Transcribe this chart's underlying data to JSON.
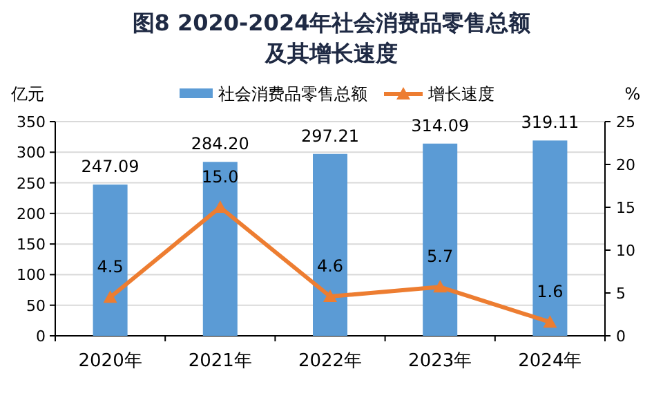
{
  "chart_data": {
    "type": "bar",
    "title": "图8  2020-2024年社会消费品零售总额及其增长速度",
    "ylabel": "亿元",
    "y2label": "%",
    "categories": [
      "2020年",
      "2021年",
      "2022年",
      "2023年",
      "2024年"
    ],
    "series": [
      {
        "name": "社会消费品零售总额",
        "color": "#5b9bd5",
        "values": [
          247.09,
          284.2,
          297.21,
          314.09,
          319.11
        ],
        "value_labels": [
          "247.09",
          "284.20",
          "297.21",
          "314.09",
          "319.11"
        ]
      },
      {
        "name": "增长速度",
        "type": "line",
        "axis": "y2",
        "color": "#ed7d31",
        "marker": "triangle",
        "values": [
          4.5,
          15.0,
          4.6,
          5.7,
          1.6
        ],
        "value_labels": [
          "4.5",
          "15.0",
          "4.6",
          "5.7",
          "1.6"
        ]
      }
    ],
    "ylim": [
      0,
      350
    ],
    "yticks": [
      0,
      50,
      100,
      150,
      200,
      250,
      300,
      350
    ],
    "y2lim": [
      0,
      25
    ],
    "y2ticks": [
      0,
      5,
      10,
      15,
      20,
      25
    ],
    "grid": "y",
    "legend": "top"
  }
}
